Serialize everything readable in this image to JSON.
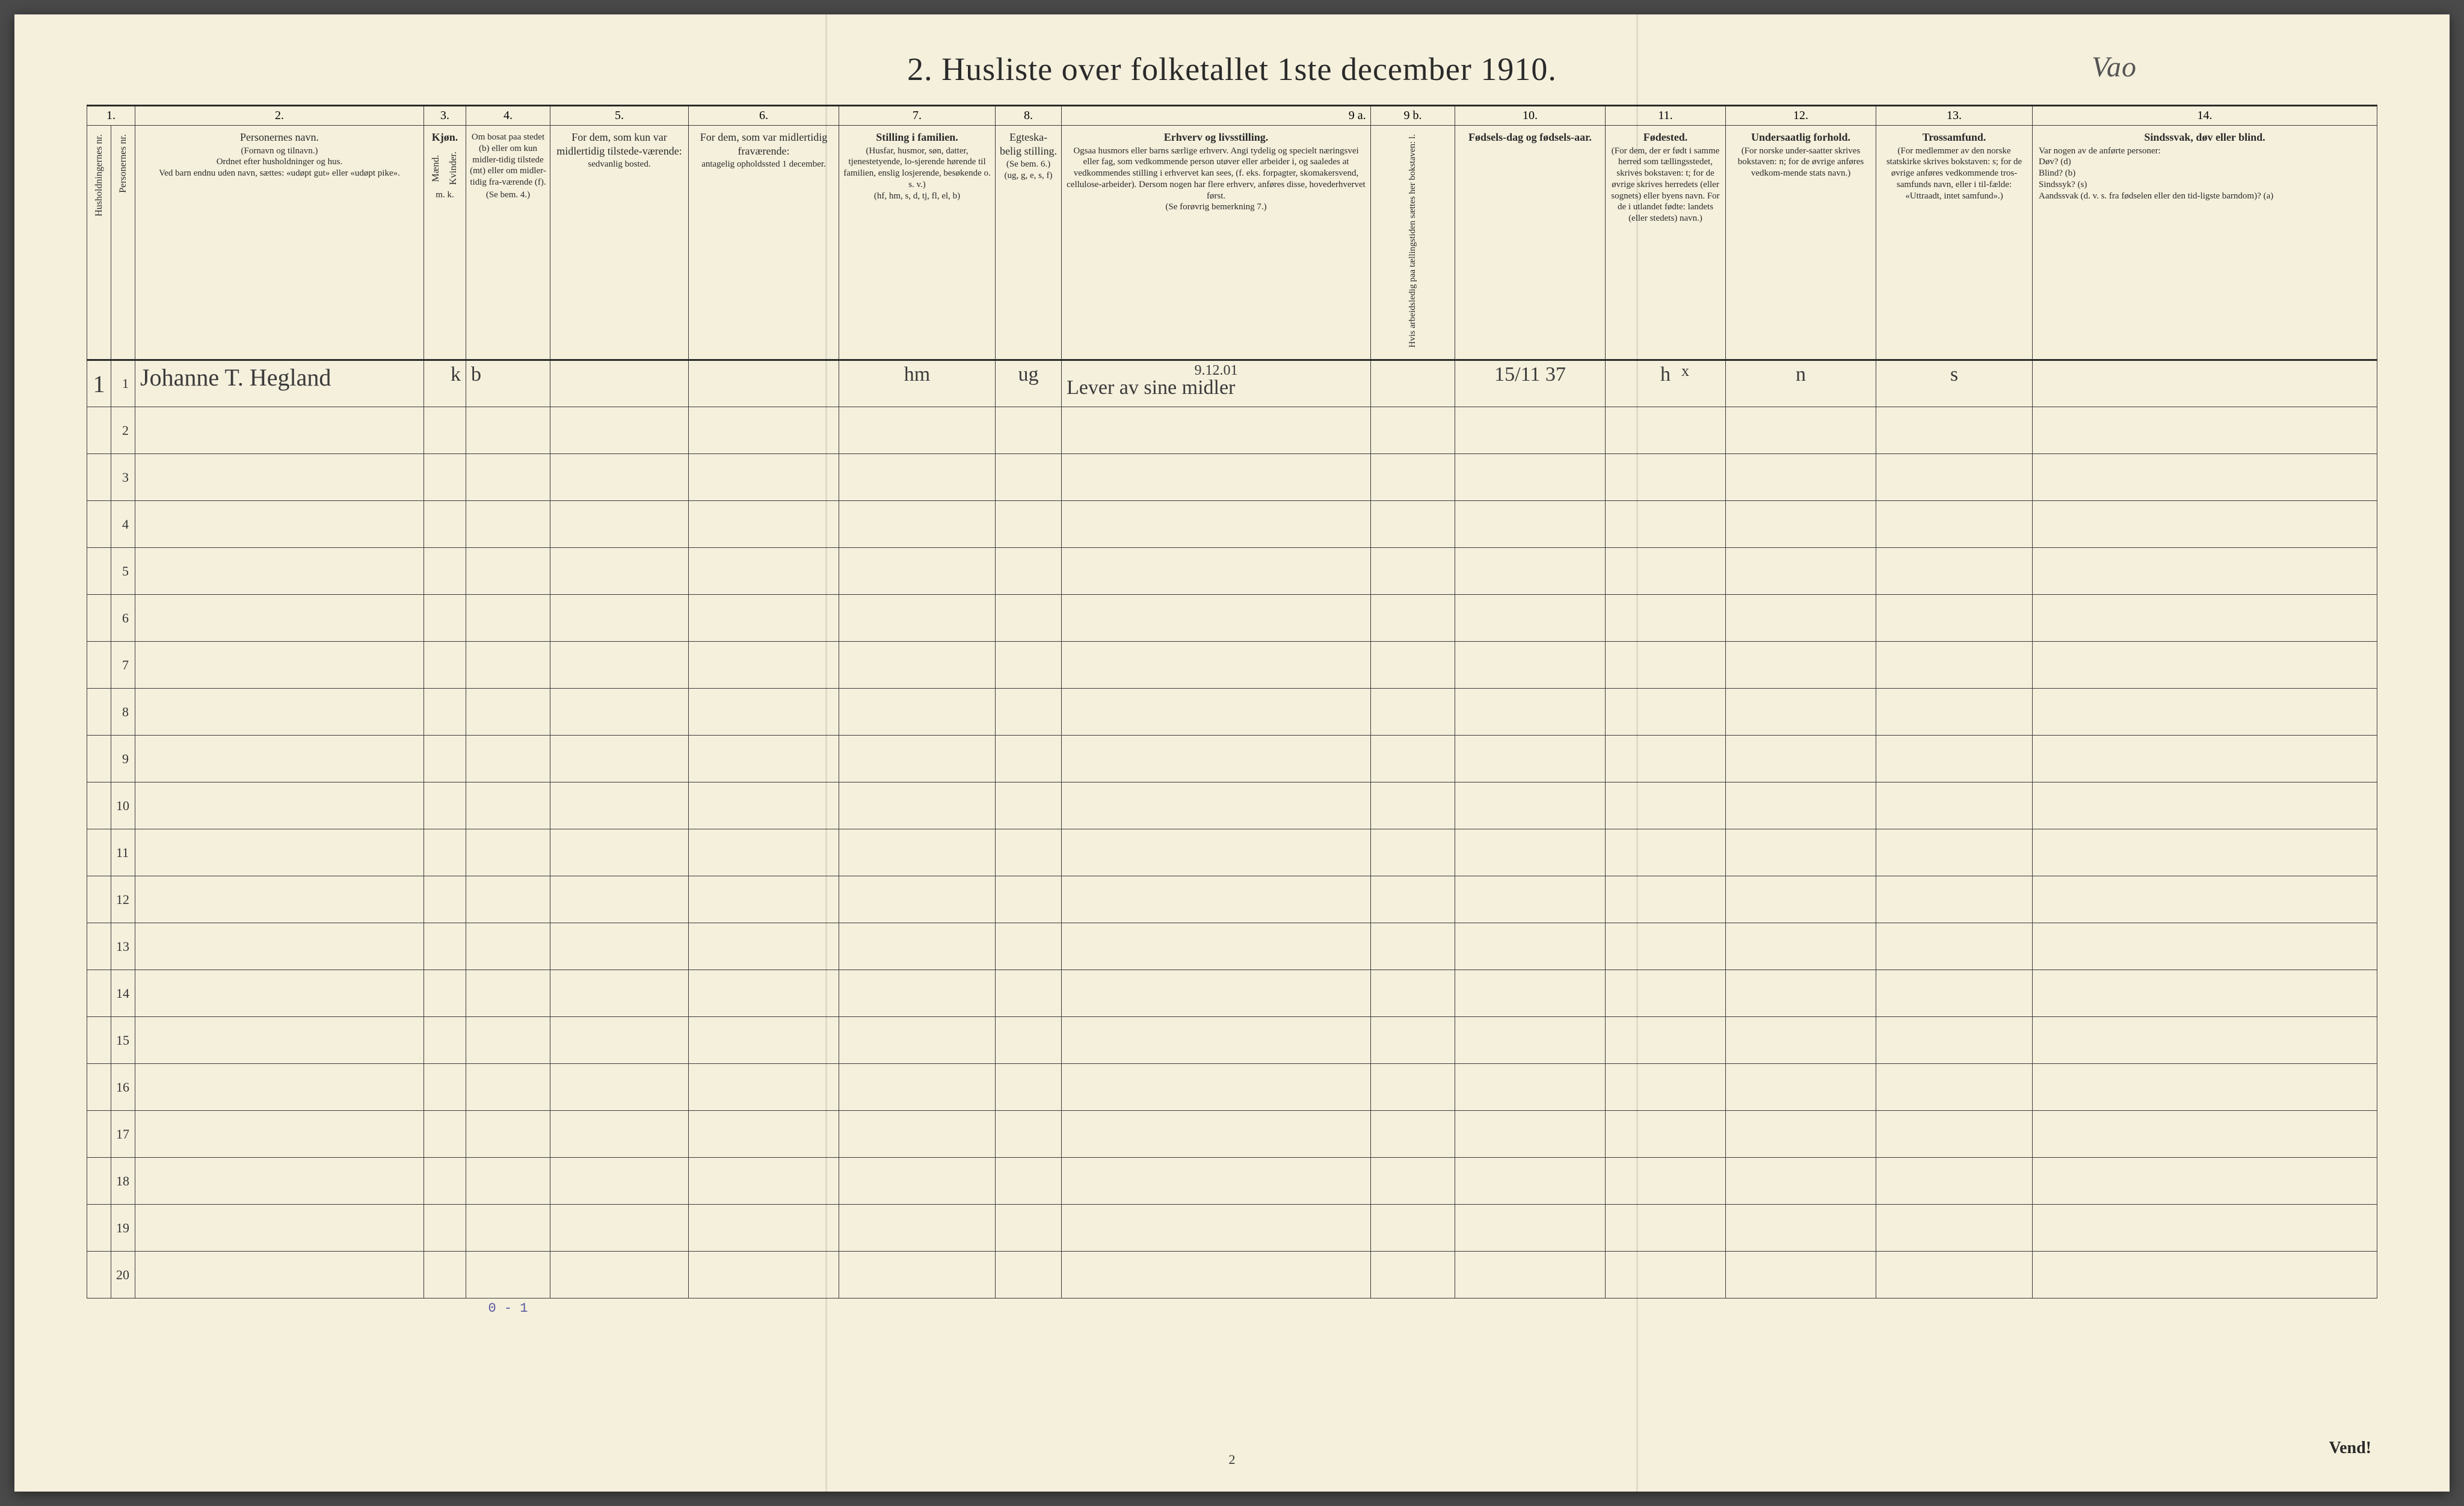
{
  "title": "2.  Husliste over folketallet 1ste december 1910.",
  "title_annotation": "Vao",
  "page_number": "2",
  "vend": "Vend!",
  "colnums": [
    "1.",
    "2.",
    "3.",
    "4.",
    "5.",
    "6.",
    "7.",
    "8.",
    " ",
    "9 a.",
    "9 b.",
    "10.",
    "11.",
    "12.",
    "13.",
    "14."
  ],
  "headers": {
    "c1a": "Husholdningernes nr.",
    "c1b": "Personernes nr.",
    "c2": "Personernes navn.",
    "c2s": "(Fornavn og tilnavn.)\nOrdnet efter husholdninger og hus.\nVed barn endnu uden navn, sættes: «udøpt gut» eller «udøpt pike».",
    "c3": "Kjøn.",
    "c3a": "Mænd.",
    "c3b": "Kvinder.",
    "c3s": "m.   k.",
    "c4": "Om bosat paa stedet (b) eller om kun midler-tidig tilstede (mt) eller om midler-tidig fra-værende (f).",
    "c4s": "(Se bem. 4.)",
    "c5": "For dem, som kun var midlertidig tilstede-værende:",
    "c5s": "sedvanlig bosted.",
    "c6": "For dem, som var midlertidig fraværende:",
    "c6s": "antagelig opholdssted 1 december.",
    "c7": "Stilling i familien.",
    "c7s": "(Husfar, husmor, søn, datter, tjenestetyende, lo-sjerende hørende til familien, enslig losjerende, besøkende o. s. v.)\n(hf, hm, s, d, tj, fl, el, b)",
    "c8": "Egteska-belig stilling.",
    "c8s": "(Se bem. 6.)\n(ug, g, e, s, f)",
    "c9a": "Erhverv og livsstilling.",
    "c9as": "Ogsaa husmors eller barns særlige erhverv. Angi tydelig og specielt næringsvei eller fag, som vedkommende person utøver eller arbeider i, og saaledes at vedkommendes stilling i erhvervet kan sees, (f. eks. forpagter, skomakersvend, cellulose-arbeider). Dersom nogen har flere erhverv, anføres disse, hovederhvervet først.\n(Se forøvrig bemerkning 7.)",
    "c9b": "Hvis arbeidsledig paa tællingstiden sættes her bokstaven: l.",
    "c10": "Fødsels-dag og fødsels-aar.",
    "c11": "Fødested.",
    "c11s": "(For dem, der er født i samme herred som tællingsstedet, skrives bokstaven: t; for de øvrige skrives herredets (eller sognets) eller byens navn. For de i utlandet fødte: landets (eller stedets) navn.)",
    "c12": "Undersaatlig forhold.",
    "c12s": "(For norske under-saatter skrives bokstaven: n; for de øvrige anføres vedkom-mende stats navn.)",
    "c13": "Trossamfund.",
    "c13s": "(For medlemmer av den norske statskirke skrives bokstaven: s; for de øvrige anføres vedkommende tros-samfunds navn, eller i til-fælde: «Uttraadt, intet samfund».)",
    "c14": "Sindssvak, døv eller blind.",
    "c14s": "Var nogen av de anførte personer:\nDøv?        (d)\nBlind?       (b)\nSindssyk?  (s)\nAandssvak (d. v. s. fra fødselen eller den tid-ligste barndom)?  (a)"
  },
  "row1": {
    "hh": "1",
    "pn": "1",
    "name": "Johanne T. Hegland",
    "sex": "k",
    "res": "b",
    "fam": "hm",
    "mar": "ug",
    "occ_sup": "9.12.01",
    "occ": "Lever av sine midler",
    "dob": "15/11 37",
    "birthplace_mark": "x",
    "birthplace": "h",
    "nat": "n",
    "rel": "s"
  },
  "tally": "0 - 1",
  "colwidths": {
    "c1a": 40,
    "c1b": 40,
    "c2": 480,
    "c3": 70,
    "c4": 140,
    "c5": 230,
    "c6": 250,
    "c7": 260,
    "c8": 110,
    "c9a": 470,
    "c9b": 44,
    "c10": 140,
    "c11": 250,
    "c12": 200,
    "c13": 250,
    "c14": 260
  }
}
